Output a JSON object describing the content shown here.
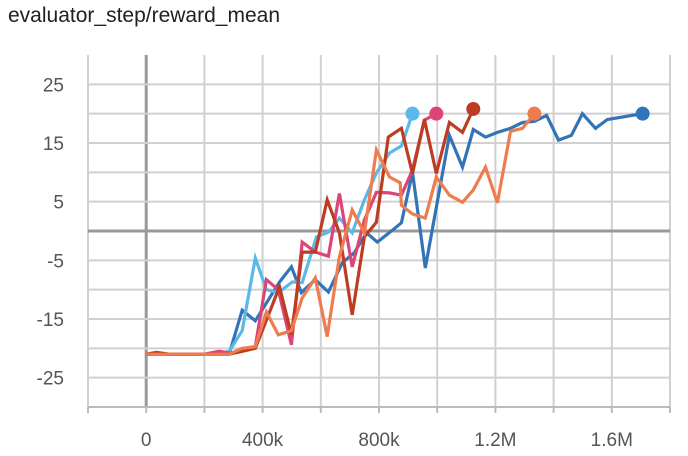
{
  "chart_data": {
    "type": "line",
    "title": "evaluator_step/reward_mean",
    "xlabel": "",
    "ylabel": "",
    "xlim": [
      -200000,
      1800000
    ],
    "ylim": [
      -30,
      30
    ],
    "grid": true,
    "x_ticks": [
      {
        "value": 0,
        "label": "0"
      },
      {
        "value": 400000,
        "label": "400k"
      },
      {
        "value": 800000,
        "label": "800k"
      },
      {
        "value": 1200000,
        "label": "1.2M"
      },
      {
        "value": 1600000,
        "label": "1.6M"
      }
    ],
    "y_ticks": [
      {
        "value": 25,
        "label": "25"
      },
      {
        "value": 15,
        "label": "15"
      },
      {
        "value": 5,
        "label": "5"
      },
      {
        "value": -5,
        "label": "-5"
      },
      {
        "value": -15,
        "label": "-15"
      },
      {
        "value": -25,
        "label": "-25"
      }
    ],
    "series": [
      {
        "color": "#3274b8",
        "points": [
          [
            0,
            -21
          ],
          [
            40000,
            -21
          ],
          [
            80000,
            -21
          ],
          [
            120000,
            -21
          ],
          [
            160000,
            -21
          ],
          [
            200000,
            -21
          ],
          [
            240000,
            -21
          ],
          [
            285000,
            -21
          ],
          [
            330000,
            -13.5
          ],
          [
            375000,
            -15.3
          ],
          [
            458000,
            -8.7
          ],
          [
            499000,
            -6.1
          ],
          [
            533000,
            -10.5
          ],
          [
            581000,
            -8.3
          ],
          [
            626000,
            -10.4
          ],
          [
            674000,
            -5.4
          ],
          [
            715000,
            -3.7
          ],
          [
            757000,
            -0.3
          ],
          [
            794000,
            -1.9
          ],
          [
            835000,
            -0.3
          ],
          [
            877000,
            1.4
          ],
          [
            915000,
            10
          ],
          [
            959000,
            -6.3
          ],
          [
            1042000,
            16.3
          ],
          [
            1087000,
            10.9
          ],
          [
            1124000,
            17.3
          ],
          [
            1166000,
            16
          ],
          [
            1207000,
            16.8
          ],
          [
            1252000,
            17.5
          ],
          [
            1293000,
            18.5
          ],
          [
            1334000,
            18.7
          ],
          [
            1376000,
            19.7
          ],
          [
            1417000,
            15.5
          ],
          [
            1461000,
            16.3
          ],
          [
            1499000,
            20
          ],
          [
            1544000,
            17.5
          ],
          [
            1585000,
            19
          ],
          [
            1706000,
            20
          ]
        ]
      },
      {
        "color": "#5bb9ea",
        "points": [
          [
            0,
            -21
          ],
          [
            40000,
            -21
          ],
          [
            80000,
            -21
          ],
          [
            120000,
            -21
          ],
          [
            160000,
            -21
          ],
          [
            200000,
            -21
          ],
          [
            240000,
            -21
          ],
          [
            285000,
            -20.5
          ],
          [
            330000,
            -17
          ],
          [
            375000,
            -4.6
          ],
          [
            413000,
            -10
          ],
          [
            454000,
            -10.5
          ],
          [
            502000,
            -8.7
          ],
          [
            536000,
            -8.8
          ],
          [
            585000,
            -1
          ],
          [
            626000,
            -0.2
          ],
          [
            664000,
            2.2
          ],
          [
            708000,
            -0.3
          ],
          [
            750000,
            5.3
          ],
          [
            791000,
            9.9
          ],
          [
            836000,
            13.3
          ],
          [
            877000,
            14.5
          ],
          [
            915000,
            20
          ]
        ]
      },
      {
        "color": "#dd4477",
        "points": [
          [
            0,
            -21
          ],
          [
            40000,
            -21
          ],
          [
            80000,
            -21
          ],
          [
            120000,
            -21
          ],
          [
            160000,
            -21
          ],
          [
            200000,
            -21
          ],
          [
            250000,
            -20.5
          ],
          [
            285000,
            -20.8
          ],
          [
            330000,
            -20.5
          ],
          [
            375000,
            -19.7
          ],
          [
            413000,
            -8.3
          ],
          [
            454000,
            -10
          ],
          [
            499000,
            -19.4
          ],
          [
            536000,
            -1.9
          ],
          [
            581000,
            -3.6
          ],
          [
            626000,
            -4.3
          ],
          [
            664000,
            6.4
          ],
          [
            708000,
            -6.1
          ],
          [
            750000,
            1.9
          ],
          [
            791000,
            6.6
          ],
          [
            836000,
            6.5
          ],
          [
            877000,
            6.1
          ],
          [
            915000,
            10.4
          ],
          [
            956000,
            18.9
          ],
          [
            997000,
            20
          ]
        ]
      },
      {
        "color": "#bc3c24",
        "points": [
          [
            0,
            -21
          ],
          [
            35000,
            -20.7
          ],
          [
            80000,
            -21
          ],
          [
            120000,
            -21
          ],
          [
            160000,
            -21
          ],
          [
            200000,
            -21
          ],
          [
            240000,
            -21
          ],
          [
            285000,
            -21
          ],
          [
            330000,
            -20.5
          ],
          [
            375000,
            -20
          ],
          [
            413000,
            -15.2
          ],
          [
            458000,
            -9.5
          ],
          [
            499000,
            -17.7
          ],
          [
            536000,
            -3.6
          ],
          [
            581000,
            -3.6
          ],
          [
            622000,
            5.3
          ],
          [
            664000,
            -0.3
          ],
          [
            708000,
            -14.3
          ],
          [
            750000,
            -1
          ],
          [
            791000,
            1.5
          ],
          [
            832000,
            16
          ],
          [
            877000,
            17.5
          ],
          [
            915000,
            9.8
          ],
          [
            956000,
            19
          ],
          [
            997000,
            9.8
          ],
          [
            1042000,
            18.5
          ],
          [
            1087000,
            16.8
          ],
          [
            1124000,
            20.8
          ]
        ]
      },
      {
        "color": "#ee7c4e",
        "points": [
          [
            0,
            -21
          ],
          [
            40000,
            -21
          ],
          [
            80000,
            -21
          ],
          [
            120000,
            -21
          ],
          [
            160000,
            -21
          ],
          [
            200000,
            -21
          ],
          [
            240000,
            -21
          ],
          [
            285000,
            -21
          ],
          [
            330000,
            -20
          ],
          [
            375000,
            -19.7
          ],
          [
            413000,
            -13.8
          ],
          [
            454000,
            -17.7
          ],
          [
            499000,
            -17
          ],
          [
            536000,
            -11.4
          ],
          [
            581000,
            -8
          ],
          [
            622000,
            -18
          ],
          [
            664000,
            -4.4
          ],
          [
            708000,
            3.6
          ],
          [
            750000,
            -0.3
          ],
          [
            791000,
            13.8
          ],
          [
            836000,
            9.2
          ],
          [
            873000,
            8.2
          ],
          [
            877000,
            4.4
          ],
          [
            915000,
            2.9
          ],
          [
            959000,
            2.2
          ],
          [
            997000,
            9.2
          ],
          [
            1042000,
            6.1
          ],
          [
            1087000,
            4.9
          ],
          [
            1124000,
            7
          ],
          [
            1166000,
            10.9
          ],
          [
            1207000,
            4.8
          ],
          [
            1252000,
            17
          ],
          [
            1293000,
            17.5
          ],
          [
            1334000,
            20
          ]
        ]
      }
    ]
  }
}
